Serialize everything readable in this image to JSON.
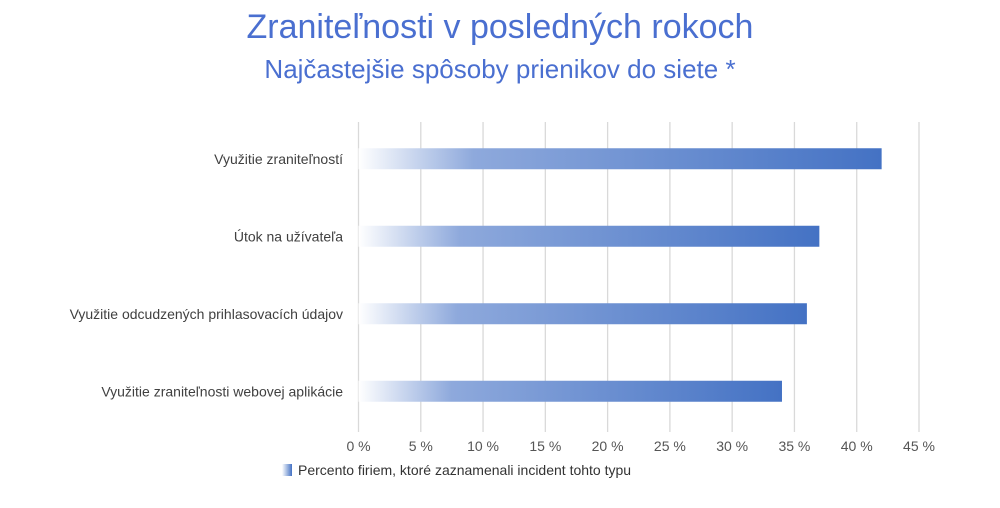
{
  "chart_data": {
    "type": "bar",
    "orientation": "horizontal",
    "title": "Zraniteľnosti v posledných rokoch",
    "subtitle": "Najčastejšie spôsoby prienikov do siete *",
    "categories": [
      "Využitie zraniteľností",
      "Útok na užívateľa",
      "Využitie odcudzených prihlasovacích údajov",
      "Využitie zraniteľnosti webovej aplikácie"
    ],
    "series": [
      {
        "name": "Percento firiem, ktoré zaznamenali incident tohto typu",
        "values": [
          42,
          37,
          36,
          34
        ]
      }
    ],
    "xlim": [
      0,
      45
    ],
    "xticks": [
      0,
      5,
      10,
      15,
      20,
      25,
      30,
      35,
      40,
      45
    ],
    "xtick_labels": [
      "0 %",
      "5 %",
      "10 %",
      "15 %",
      "20 %",
      "25 %",
      "30 %",
      "35 %",
      "40 %",
      "45 %"
    ],
    "grid": true,
    "legend_position": "bottom",
    "colors": {
      "bar": "#4472c4",
      "title": "#4a6fd0",
      "grid": "#d9d9d9"
    }
  }
}
